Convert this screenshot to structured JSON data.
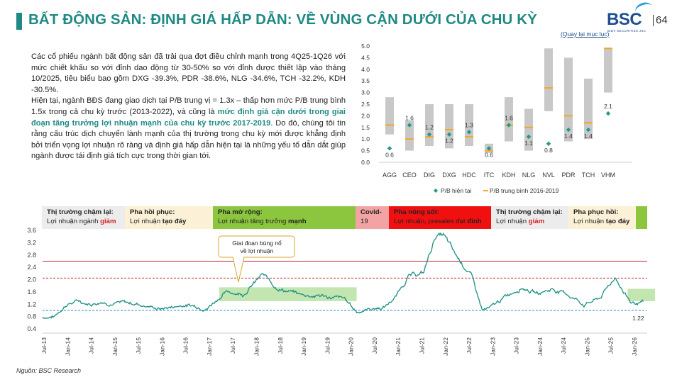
{
  "header": {
    "title": "BẤT ĐỘNG SẢN: ĐỊNH GIÁ HẤP DẪN: VỀ VÙNG CẬN DƯỚI CỦA CHU KỲ",
    "logo": "BSC",
    "logo_sub": "BIDV SECURITIES JSC",
    "page": "64",
    "back_link": "(Quay lại mục lục)"
  },
  "body": {
    "p1": "Các cổ phiếu ngành bất động sản đã trải qua đợt điều chỉnh mạnh trong 4Q25-1Q26 với mức chiết khấu so với đỉnh dao động từ 30-50% so với đỉnh được thiết lập vào tháng 10/2025, tiêu biểu bao gồm DXG -39.3%, PDR -38.6%, NLG -34.6%, TCH -32.2%, KDH -30.5%.",
    "p2a": "Hiện tại, ngành BĐS đang giao dịch tại P/B trung vị = 1.3x – thấp hơn mức P/B trung bình 1.5x trong cả chu kỳ trước (2013-2022), và cũng là ",
    "p2b": "mức định giá cận dưới trong giai đoạn tăng trưởng lợi nhuận mạnh của chu kỳ trước 2017-2019",
    "p2c": ". Do đó, chúng tôi tin rằng cấu trúc dịch chuyển lành mạnh của thị trường trong chu kỳ mới được khẳng định bởi triển vọng lợi nhuận rõ ràng và định giá hấp dẫn hiện tại là những yếu tố dẫn dắt giúp ngành được tái định giá tích cực trong thời gian tới."
  },
  "phases": [
    {
      "l1": "Thị trường chậm lại:",
      "l2a": "Lợi nhuận ngành ",
      "l2b": "giảm",
      "l2b_style": "red",
      "bg": "#ececec",
      "x": 0,
      "w": 117
    },
    {
      "l1": "Pha hồi phục:",
      "l2a": "Lợi nhuận ",
      "l2b": "tạo đáy",
      "l2b_style": "bold",
      "bg": "#fcf1d6",
      "x": 117,
      "w": 124
    },
    {
      "l1": "Pha mở rộng:",
      "l2a": "Lợi nhuận tăng trưởng ",
      "l2b": "mạnh",
      "l2b_style": "bold",
      "bg": "#8cc63f",
      "x": 241,
      "w": 201
    },
    {
      "l1": "Covid-",
      "l2a": "19",
      "l2b": "",
      "l2b_style": "bold",
      "bg": "#f3a3a3",
      "x": 442,
      "w": 47
    },
    {
      "l1": "Pha nóng sốt:",
      "l2a": "Lợi nhuận, presales đạt ",
      "l2b": "đỉnh",
      "l2b_style": "bold",
      "bg": "#f01010",
      "x": 489,
      "w": 144
    },
    {
      "l1": "Thị trường chậm lại:",
      "l2a": "Lợi nhuận ",
      "l2b": "giảm",
      "l2b_style": "red",
      "bg": "#ececec",
      "x": 633,
      "w": 109
    },
    {
      "l1": "Pha phục hồi:",
      "l2a": "Lợi nhuận ",
      "l2b": "tạo đáy",
      "l2b_style": "bold",
      "bg": "#fcf1d6",
      "x": 742,
      "w": 95
    },
    {
      "l1": "",
      "l2a": "",
      "l2b": "",
      "l2b_style": "bold",
      "bg": "#8cc63f",
      "x": 837,
      "w": 16
    }
  ],
  "source": "Nguồn: BSC Research",
  "chart_data": [
    {
      "type": "range-bar",
      "categories": [
        "AGG",
        "CEO",
        "DIG",
        "DXG",
        "HDC",
        "ITC",
        "KDH",
        "NLG",
        "NVL",
        "PDR",
        "TCH",
        "VHM"
      ],
      "range_low": [
        1.2,
        0.5,
        0.7,
        0.6,
        0.7,
        0.4,
        0.9,
        0.5,
        2.2,
        0.9,
        1.0,
        3.0
      ],
      "range_high": [
        2.8,
        1.8,
        2.5,
        2.5,
        2.5,
        0.8,
        2.8,
        2.3,
        4.9,
        4.5,
        3.6,
        4.9
      ],
      "pb_current": [
        0.6,
        1.6,
        1.2,
        1.2,
        1.3,
        0.6,
        1.6,
        1.1,
        0.8,
        1.4,
        1.4,
        2.1
      ],
      "pb_current_labels": [
        "0.6",
        "1.6",
        "1.2",
        "1.2",
        "1.3",
        "0.6",
        "1.6",
        "1.1",
        "0.8",
        "1.4",
        "1.4",
        "2.1"
      ],
      "pb_avg": [
        1.6,
        1.0,
        1.1,
        1.4,
        1.1,
        0.5,
        1.6,
        1.5,
        3.2,
        2.0,
        1.7,
        4.9
      ],
      "ylim": [
        0,
        5
      ],
      "yticks": [
        "0.0",
        "0.5",
        "1.0",
        "1.5",
        "2.0",
        "2.5",
        "3.0",
        "3.5",
        "4.0",
        "4.5",
        "5.0"
      ],
      "legend": [
        "P/B hiện tại",
        "P/B trung bình 2016-2019"
      ],
      "colors": {
        "range": "#c8c8c8",
        "current": "#1f9a8a",
        "avg": "#f5a623"
      }
    },
    {
      "type": "line",
      "series_name": "P/B",
      "x_ticks": [
        "Jul-13",
        "Jan-14",
        "Jul-14",
        "Jan-15",
        "Jul-15",
        "Jan-16",
        "Jul-16",
        "Jan-17",
        "Jul-17",
        "Jan-18",
        "Jul-18",
        "Jan-19",
        "Jul-19",
        "Jan-20",
        "Jul-20",
        "Jan-21",
        "Jul-21",
        "Jan-22",
        "Jul-22",
        "Jan-23",
        "Jul-23",
        "Jan-24",
        "Jul-24",
        "Jan-25",
        "Jul-25",
        "Jan-26"
      ],
      "yticks": [
        "0.4",
        "0.8",
        "1.2",
        "1.6",
        "2.0",
        "2.4",
        "2.8",
        "3.2",
        "3.6"
      ],
      "ylim": [
        0.4,
        3.6
      ],
      "anchors": [
        [
          "2013-07",
          0.78
        ],
        [
          "2013-10",
          0.8
        ],
        [
          "2014-01",
          1.2
        ],
        [
          "2014-04",
          1.3
        ],
        [
          "2014-07",
          1.22
        ],
        [
          "2014-10",
          1.3
        ],
        [
          "2015-01",
          1.25
        ],
        [
          "2015-07",
          1.22
        ],
        [
          "2016-01",
          1.05
        ],
        [
          "2016-07",
          1.18
        ],
        [
          "2017-01",
          1.1
        ],
        [
          "2017-05",
          1.55
        ],
        [
          "2017-07",
          1.6
        ],
        [
          "2017-10",
          1.55
        ],
        [
          "2018-01",
          1.9
        ],
        [
          "2018-03",
          2.15
        ],
        [
          "2018-06",
          1.8
        ],
        [
          "2018-09",
          1.65
        ],
        [
          "2019-01",
          1.5
        ],
        [
          "2019-06",
          1.48
        ],
        [
          "2019-12",
          1.35
        ],
        [
          "2020-03",
          0.95
        ],
        [
          "2020-06",
          1.05
        ],
        [
          "2020-10",
          1.1
        ],
        [
          "2021-01",
          1.45
        ],
        [
          "2021-04",
          2.1
        ],
        [
          "2021-08",
          2.2
        ],
        [
          "2021-11",
          3.4
        ],
        [
          "2022-01",
          3.45
        ],
        [
          "2022-04",
          2.8
        ],
        [
          "2022-08",
          2.2
        ],
        [
          "2022-11",
          1.0
        ],
        [
          "2023-01",
          1.05
        ],
        [
          "2023-05",
          1.45
        ],
        [
          "2023-09",
          1.8
        ],
        [
          "2024-01",
          1.55
        ],
        [
          "2024-05",
          1.7
        ],
        [
          "2024-09",
          1.5
        ],
        [
          "2025-01",
          1.2
        ],
        [
          "2025-05",
          1.4
        ],
        [
          "2025-09",
          2.1
        ],
        [
          "2025-11",
          1.6
        ],
        [
          "2026-01",
          1.25
        ],
        [
          "2026-04",
          1.22
        ]
      ],
      "ref_lines": [
        {
          "value": 2.6,
          "style": "solid",
          "color": "#c0282d"
        },
        {
          "value": 2.05,
          "style": "dashed",
          "color": "#c0282d"
        },
        {
          "value": 1.0,
          "style": "dashed",
          "color": "#2a8fc8"
        }
      ],
      "bands": [
        {
          "from": "2017-04",
          "to": "2020-03",
          "low": 1.3,
          "high": 1.75,
          "color": "#b9e2a3"
        },
        {
          "from": "2025-12",
          "to": "2026-07",
          "low": 1.3,
          "high": 1.7,
          "color": "#b9e2a3"
        }
      ],
      "annotation": "Giai đoạn bùng nổ về lợi nhuận",
      "end_label": "1.22",
      "colors": {
        "line": "#1a8f86"
      }
    }
  ]
}
